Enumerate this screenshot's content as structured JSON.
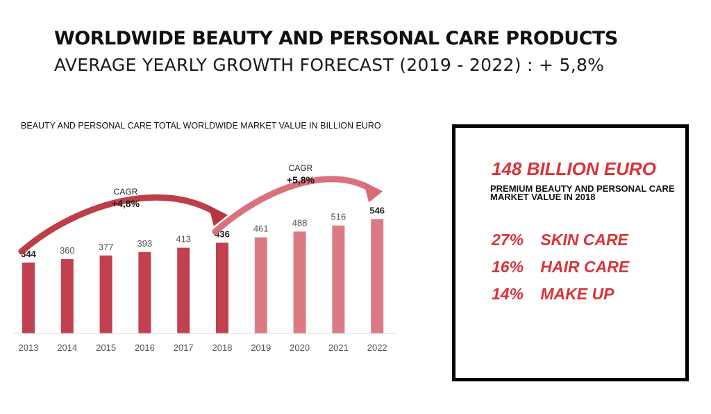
{
  "header": {
    "title": "WORLDWIDE BEAUTY AND PERSONAL CARE PRODUCTS",
    "subtitle": "AVERAGE YEARLY GROWTH FORECAST (2019 - 2022) : + 5,8%"
  },
  "chart_data": {
    "type": "bar",
    "title": "BEAUTY AND PERSONAL CARE TOTAL WORLDWIDE MARKET VALUE IN BILLION EURO",
    "xlabel": "",
    "ylabel": "",
    "ylim": [
      0,
      600
    ],
    "grid": false,
    "legend": "none",
    "categories": [
      "2013",
      "2014",
      "2015",
      "2016",
      "2017",
      "2018",
      "2019",
      "2020",
      "2021",
      "2022"
    ],
    "values": [
      344,
      360,
      377,
      393,
      413,
      436,
      461,
      488,
      516,
      546
    ],
    "value_labels": [
      "344",
      "360",
      "377",
      "393",
      "413",
      "436",
      "461",
      "488",
      "516",
      "546"
    ],
    "bold_labels": [
      0,
      5,
      9
    ],
    "colors": {
      "historical": "#c2404f",
      "forecast": "#dc7a84",
      "arrow_historical": "#b8343f",
      "arrow_forecast": "#d86a76"
    },
    "forecast_start_index": 6,
    "annotations": [
      {
        "caption": "CAGR",
        "value": "+4,8%",
        "from_index": 0,
        "to_index": 5
      },
      {
        "caption": "CAGR",
        "value": "+5,8%",
        "from_index": 5,
        "to_index": 9
      }
    ]
  },
  "side_panel": {
    "headline": "148 BILLION EURO",
    "description": "PREMIUM BEAUTY AND PERSONAL CARE MARKET VALUE IN 2018",
    "segments": [
      {
        "percent": "27%",
        "label": "SKIN CARE"
      },
      {
        "percent": "16%",
        "label": "HAIR CARE"
      },
      {
        "percent": "14%",
        "label": "MAKE UP"
      }
    ]
  }
}
